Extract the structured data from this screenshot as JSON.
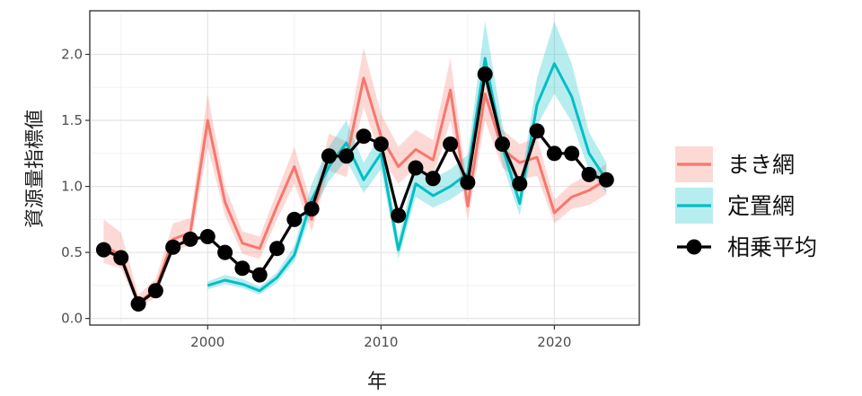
{
  "chart_data": {
    "type": "line",
    "xlabel": "年",
    "ylabel": "資源量指標値",
    "xlim": [
      1993.2,
      2024.9
    ],
    "ylim": [
      -0.05,
      2.33
    ],
    "x_ticks": [
      2000,
      2010,
      2020
    ],
    "y_ticks": [
      0.0,
      0.5,
      1.0,
      1.5,
      2.0
    ],
    "y_tick_labels": [
      "0.0",
      "0.5",
      "1.0",
      "1.5",
      "2.0"
    ],
    "grid": true,
    "legend_position": "right",
    "series": [
      {
        "name": "まき網",
        "color": "#F8766D",
        "x": [
          1994,
          1995,
          1996,
          1997,
          1998,
          1999,
          2000,
          2001,
          2002,
          2003,
          2004,
          2005,
          2006,
          2007,
          2008,
          2009,
          2010,
          2011,
          2012,
          2013,
          2014,
          2015,
          2016,
          2017,
          2018,
          2019,
          2020,
          2021,
          2022,
          2023
        ],
        "values": [
          0.55,
          0.48,
          0.12,
          0.22,
          0.6,
          0.65,
          1.5,
          0.88,
          0.57,
          0.53,
          0.85,
          1.15,
          0.75,
          1.25,
          1.2,
          1.82,
          1.38,
          1.15,
          1.28,
          1.2,
          1.73,
          0.85,
          1.7,
          1.28,
          1.18,
          1.22,
          0.8,
          0.92,
          0.97,
          1.05
        ],
        "lower": [
          0.42,
          0.38,
          0.08,
          0.16,
          0.5,
          0.56,
          1.3,
          0.78,
          0.49,
          0.45,
          0.75,
          1.02,
          0.66,
          1.12,
          1.07,
          1.6,
          1.22,
          1.02,
          1.14,
          1.07,
          1.5,
          0.74,
          1.5,
          1.14,
          1.05,
          1.08,
          0.72,
          0.83,
          0.86,
          0.94
        ],
        "upper": [
          0.75,
          0.65,
          0.18,
          0.3,
          0.72,
          0.76,
          1.7,
          1.0,
          0.66,
          0.62,
          0.96,
          1.3,
          0.86,
          1.4,
          1.34,
          2.05,
          1.55,
          1.3,
          1.43,
          1.35,
          1.97,
          0.98,
          1.93,
          1.43,
          1.32,
          1.37,
          0.9,
          1.02,
          1.09,
          1.17
        ]
      },
      {
        "name": "定置網",
        "color": "#00BFC4",
        "x": [
          2000,
          2001,
          2002,
          2003,
          2004,
          2005,
          2006,
          2007,
          2008,
          2009,
          2010,
          2011,
          2012,
          2013,
          2014,
          2015,
          2016,
          2017,
          2018,
          2019,
          2020,
          2021,
          2022,
          2023
        ],
        "values": [
          0.25,
          0.29,
          0.26,
          0.21,
          0.31,
          0.48,
          0.9,
          1.15,
          1.33,
          1.05,
          1.25,
          0.52,
          1.02,
          0.93,
          1.0,
          1.1,
          1.97,
          1.3,
          0.87,
          1.62,
          1.93,
          1.68,
          1.25,
          1.05
        ],
        "lower": [
          0.22,
          0.26,
          0.23,
          0.18,
          0.27,
          0.43,
          0.8,
          1.04,
          1.2,
          0.95,
          1.13,
          0.45,
          0.92,
          0.84,
          0.9,
          0.99,
          1.78,
          1.17,
          0.78,
          1.46,
          1.7,
          1.49,
          1.12,
          0.95
        ],
        "upper": [
          0.28,
          0.33,
          0.3,
          0.24,
          0.35,
          0.55,
          1.02,
          1.3,
          1.5,
          1.18,
          1.4,
          0.6,
          1.15,
          1.06,
          1.13,
          1.24,
          2.25,
          1.47,
          0.98,
          1.82,
          2.25,
          1.93,
          1.41,
          1.18
        ]
      },
      {
        "name": "相乗平均",
        "color": "#000000",
        "x": [
          1994,
          1995,
          1996,
          1997,
          1998,
          1999,
          2000,
          2001,
          2002,
          2003,
          2004,
          2005,
          2006,
          2007,
          2008,
          2009,
          2010,
          2011,
          2012,
          2013,
          2014,
          2015,
          2016,
          2017,
          2018,
          2019,
          2020,
          2021,
          2022,
          2023
        ],
        "values": [
          0.52,
          0.46,
          0.11,
          0.21,
          0.54,
          0.6,
          0.62,
          0.5,
          0.38,
          0.33,
          0.53,
          0.75,
          0.83,
          1.23,
          1.23,
          1.38,
          1.32,
          0.78,
          1.14,
          1.06,
          1.32,
          1.03,
          1.85,
          1.32,
          1.02,
          1.42,
          1.25,
          1.25,
          1.09,
          1.05
        ]
      }
    ]
  }
}
